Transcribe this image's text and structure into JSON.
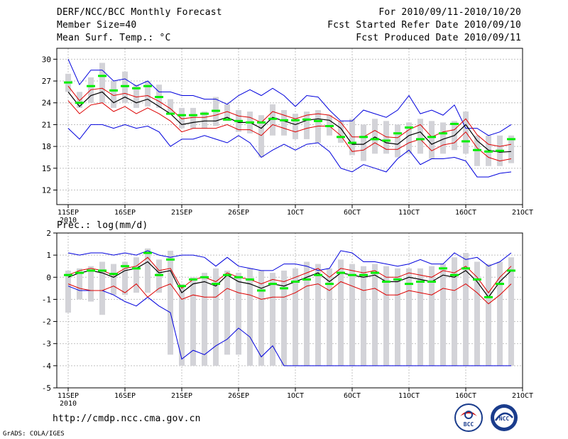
{
  "header": {
    "title": "DERF/NCC/BCC Monthly Forecast",
    "member": "Member Size=40",
    "variable": "Mean Surf. Temp.: °C",
    "period": "For 2010/09/11-2010/10/20",
    "started": "Fcst Started Refer Date 2010/09/10",
    "produced": "Fcst Produced Date 2010/09/11"
  },
  "footer": {
    "url": "http://cmdp.ncc.cma.gov.cn",
    "credit": "GrADS: COLA/IGES"
  },
  "logos": {
    "bcc": "BCC",
    "ncc": "NCC"
  },
  "colors": {
    "box": "#d3d3d8",
    "mean": "#00ee00",
    "ens": "#000000",
    "spread": "#dd0000",
    "extreme": "#0000dd"
  },
  "chart_data": [
    {
      "type": "box",
      "title": "Mean Surf. Temp.: °C",
      "xlabel": "",
      "ylabel": "°C",
      "days": 39,
      "xlim": [
        0,
        39
      ],
      "ylim": [
        10,
        31.5
      ],
      "yticks": [
        12,
        15,
        18,
        21,
        24,
        27,
        30
      ],
      "xticks": [
        {
          "day": 0,
          "label": "11SEP",
          "sub": "2010"
        },
        {
          "day": 5,
          "label": "16SEP",
          "sub": ""
        },
        {
          "day": 10,
          "label": "21SEP",
          "sub": ""
        },
        {
          "day": 15,
          "label": "26SEP",
          "sub": ""
        },
        {
          "day": 20,
          "label": "1OCT",
          "sub": ""
        },
        {
          "day": 25,
          "label": "6OCT",
          "sub": ""
        },
        {
          "day": 30,
          "label": "11OCT",
          "sub": ""
        },
        {
          "day": 35,
          "label": "16OCT",
          "sub": ""
        },
        {
          "day": 40,
          "label": "21OCT",
          "sub": ""
        }
      ],
      "box_low": [
        25.5,
        23.3,
        24,
        24,
        23.3,
        24,
        23.3,
        23.5,
        23.3,
        22.5,
        20.5,
        20.5,
        20.5,
        20.8,
        21.5,
        20,
        19.8,
        16.5,
        19.5,
        19.5,
        19,
        19,
        18.5,
        19.5,
        18.5,
        16.8,
        16,
        17,
        17,
        16.5,
        17,
        17,
        16.3,
        17,
        17.5,
        17,
        15.3,
        15.3,
        15.3,
        15.7
      ],
      "box_high": [
        28,
        25.5,
        27.5,
        29.5,
        27,
        28.3,
        26.5,
        27,
        26.5,
        24.5,
        23.3,
        23.3,
        22.8,
        24.8,
        23.8,
        23,
        22.8,
        22.3,
        23.8,
        23,
        22.5,
        22.8,
        23,
        22.3,
        21.5,
        21.8,
        21,
        21.8,
        21.5,
        21,
        21.3,
        21.8,
        21.5,
        21.3,
        21.5,
        22.8,
        19.5,
        19.5,
        19.5,
        19.5
      ],
      "green": [
        26.8,
        24,
        26.3,
        27.7,
        25.7,
        26.3,
        26,
        26.3,
        24.8,
        22.5,
        22.3,
        22.3,
        22.5,
        22.9,
        21.7,
        21.5,
        21.3,
        21.3,
        21.8,
        21.6,
        21.6,
        21.7,
        21.5,
        20.8,
        19.3,
        18.5,
        19.3,
        19,
        18.8,
        19.8,
        20.6,
        19,
        19.3,
        19.8,
        21.1,
        18.7,
        17.5,
        17.3,
        17.4,
        19
      ],
      "ens_mean": [
        25.5,
        23.5,
        25,
        25.5,
        24,
        24.8,
        24,
        24.5,
        23.5,
        22.5,
        21,
        21.3,
        21.5,
        21.5,
        22,
        21.3,
        21.3,
        20.5,
        22,
        21.5,
        21,
        21.6,
        21.8,
        21.6,
        20.5,
        18.3,
        18.3,
        19.3,
        18.5,
        18.3,
        19.5,
        20,
        18.3,
        19,
        19.5,
        21,
        18.8,
        17.5,
        17.2,
        17.3
      ],
      "p_upper": [
        26.3,
        24.3,
        25.8,
        26,
        25,
        25.3,
        24.8,
        25,
        24.2,
        23.2,
        21.8,
        22,
        22,
        22.3,
        22.8,
        22.2,
        22,
        21.3,
        22.8,
        22.3,
        21.8,
        22.3,
        22.5,
        22.3,
        21.3,
        19.3,
        19.3,
        20.2,
        19.3,
        19.2,
        20.3,
        21,
        19.3,
        20,
        20.3,
        21.8,
        19.6,
        18.3,
        18,
        18.3
      ],
      "p_lower": [
        24.3,
        22.5,
        23.7,
        24,
        22.8,
        23.5,
        22.5,
        23.3,
        22.5,
        21.5,
        20,
        20.5,
        20.5,
        20.5,
        21,
        20.3,
        20.3,
        19.5,
        21,
        20.5,
        20,
        20.5,
        20.8,
        20.8,
        19.5,
        17.3,
        17.5,
        18.5,
        17.6,
        17.6,
        18.5,
        19,
        17.4,
        18.2,
        18.5,
        20,
        17.8,
        16.5,
        16,
        16.3
      ],
      "max": [
        30,
        26.5,
        28.5,
        28.5,
        27,
        27.3,
        26.3,
        27,
        25.5,
        25.5,
        25,
        25,
        24.5,
        24.5,
        23.8,
        25,
        25.8,
        25,
        26,
        25,
        23.5,
        25,
        24.8,
        23,
        21.5,
        21.5,
        23,
        22.5,
        22,
        23,
        25,
        22.5,
        23,
        22.3,
        23.7,
        20.5,
        20.5,
        19.5,
        20,
        21
      ],
      "min": [
        20.5,
        19,
        21,
        21,
        20.5,
        21,
        20.5,
        20.8,
        20,
        18,
        19,
        19,
        19.5,
        19,
        18.5,
        19.5,
        18.5,
        16.5,
        17.5,
        18.3,
        17.5,
        18.3,
        18.5,
        17.3,
        15,
        14.5,
        15.5,
        15,
        14.5,
        16.3,
        17.5,
        15.5,
        16.3,
        16.3,
        16.5,
        16,
        13.8,
        13.8,
        14.3,
        14.5
      ]
    },
    {
      "type": "box",
      "title": "Prec.: log(mm/d)",
      "xlabel": "",
      "ylabel": "log(mm/d)",
      "days": 39,
      "xlim": [
        0,
        39
      ],
      "ylim": [
        -5,
        2
      ],
      "yticks": [
        -5,
        -4,
        -3,
        -2,
        -1,
        0,
        1,
        2
      ],
      "xticks": [
        {
          "day": 0,
          "label": "11SEP",
          "sub": "2010"
        },
        {
          "day": 5,
          "label": "16SEP",
          "sub": ""
        },
        {
          "day": 10,
          "label": "21SEP",
          "sub": ""
        },
        {
          "day": 15,
          "label": "26SEP",
          "sub": ""
        },
        {
          "day": 20,
          "label": "1OCT",
          "sub": ""
        },
        {
          "day": 25,
          "label": "6OCT",
          "sub": ""
        },
        {
          "day": 30,
          "label": "11OCT",
          "sub": ""
        },
        {
          "day": 35,
          "label": "16OCT",
          "sub": ""
        },
        {
          "day": 40,
          "label": "21OCT",
          "sub": ""
        }
      ],
      "box_low": [
        -1.6,
        -1,
        -1.1,
        -1.7,
        -0.8,
        -0.8,
        -0.7,
        -0.7,
        -0.7,
        -3.5,
        -4,
        -4,
        -4,
        -4,
        -3.5,
        -3.5,
        -4,
        -4,
        -4,
        -4,
        -4,
        -4,
        -4,
        -4,
        -4,
        -4,
        -4,
        -4,
        -4,
        -4,
        -4,
        -4,
        -4,
        -4,
        -4,
        -4,
        -4,
        -4,
        -4,
        -4
      ],
      "box_high": [
        0.3,
        0.4,
        0.5,
        0.7,
        0.6,
        0.7,
        0.9,
        1.3,
        0.8,
        1.2,
        -0.3,
        0,
        0.2,
        0.4,
        0.3,
        0.2,
        0.4,
        0.3,
        0.2,
        0.3,
        0.4,
        0.7,
        0.6,
        0.4,
        0.8,
        0.6,
        0.5,
        0.6,
        0.5,
        0.4,
        0.4,
        0.4,
        0.5,
        0.6,
        0.9,
        1.1,
        0.7,
        0.6,
        0.7,
        0.9
      ],
      "green": [
        0.1,
        0.2,
        0.3,
        0.3,
        0.15,
        0.5,
        0.4,
        1.1,
        0.1,
        0.8,
        -0.4,
        -0.1,
        0,
        -0.3,
        0.1,
        0,
        -0.1,
        -0.6,
        -0.3,
        -0.5,
        -0.2,
        -0.1,
        0.1,
        -0.3,
        0.2,
        0.1,
        0.1,
        0.2,
        -0.2,
        -0.1,
        -0.3,
        -0.2,
        -0.2,
        0.4,
        0.1,
        0.4,
        -0.1,
        -0.9,
        -0.3,
        0.3
      ],
      "ens_mean": [
        0,
        0.2,
        0.3,
        0.2,
        0,
        0.3,
        0.4,
        0.7,
        0.2,
        0.3,
        -0.7,
        -0.3,
        -0.2,
        -0.4,
        0.1,
        -0.2,
        -0.3,
        -0.5,
        -0.3,
        -0.4,
        -0.2,
        0,
        0.2,
        -0.2,
        0.2,
        0.1,
        0,
        0.1,
        -0.2,
        -0.2,
        0,
        -0.1,
        -0.2,
        0.1,
        0,
        0.3,
        -0.2,
        -0.9,
        -0.2,
        0.3
      ],
      "p_upper": [
        0.1,
        0.3,
        0.4,
        0.3,
        0.1,
        0.4,
        0.5,
        0.9,
        0.3,
        0.4,
        -0.5,
        -0.1,
        0,
        -0.2,
        0.2,
        0,
        -0.1,
        -0.3,
        -0.1,
        -0.2,
        0,
        0.2,
        0.4,
        0,
        0.4,
        0.3,
        0.2,
        0.3,
        0,
        0,
        0.2,
        0.1,
        0,
        0.3,
        0.2,
        0.5,
        0,
        -0.7,
        0,
        0.5
      ],
      "p_lower": [
        -0.3,
        -0.5,
        -0.6,
        -0.6,
        -0.4,
        -0.7,
        -0.3,
        -0.9,
        -0.5,
        -0.3,
        -1,
        -0.8,
        -0.9,
        -0.9,
        -0.5,
        -0.7,
        -0.8,
        -1,
        -0.9,
        -0.9,
        -0.7,
        -0.4,
        -0.3,
        -0.6,
        -0.2,
        -0.4,
        -0.6,
        -0.5,
        -0.8,
        -0.8,
        -0.6,
        -0.7,
        -0.8,
        -0.5,
        -0.6,
        -0.3,
        -0.7,
        -1.2,
        -0.8,
        -0.3
      ],
      "max": [
        1.1,
        1,
        1.1,
        1.1,
        1,
        1.1,
        1,
        1.2,
        1,
        0.9,
        1,
        1,
        0.9,
        0.5,
        0.9,
        0.5,
        0.4,
        0.3,
        0.3,
        0.6,
        0.6,
        0.5,
        0.3,
        0.4,
        1.2,
        1.1,
        0.7,
        0.7,
        0.6,
        0.5,
        0.6,
        0.8,
        0.6,
        0.6,
        1.1,
        0.8,
        0.9,
        0.5,
        0.7,
        1.1
      ],
      "min": [
        -0.4,
        -0.6,
        -0.6,
        -0.6,
        -0.8,
        -1.1,
        -1.3,
        -0.9,
        -1.3,
        -1.6,
        -3.7,
        -3.3,
        -3.5,
        -3.1,
        -2.8,
        -2.3,
        -2.7,
        -3.6,
        -3.1,
        -4,
        -4,
        -4,
        -4,
        -4,
        -4,
        -4,
        -4,
        -4,
        -4,
        -4,
        -4,
        -4,
        -4,
        -4,
        -4,
        -4,
        -4,
        -4,
        -4,
        -4
      ]
    }
  ]
}
